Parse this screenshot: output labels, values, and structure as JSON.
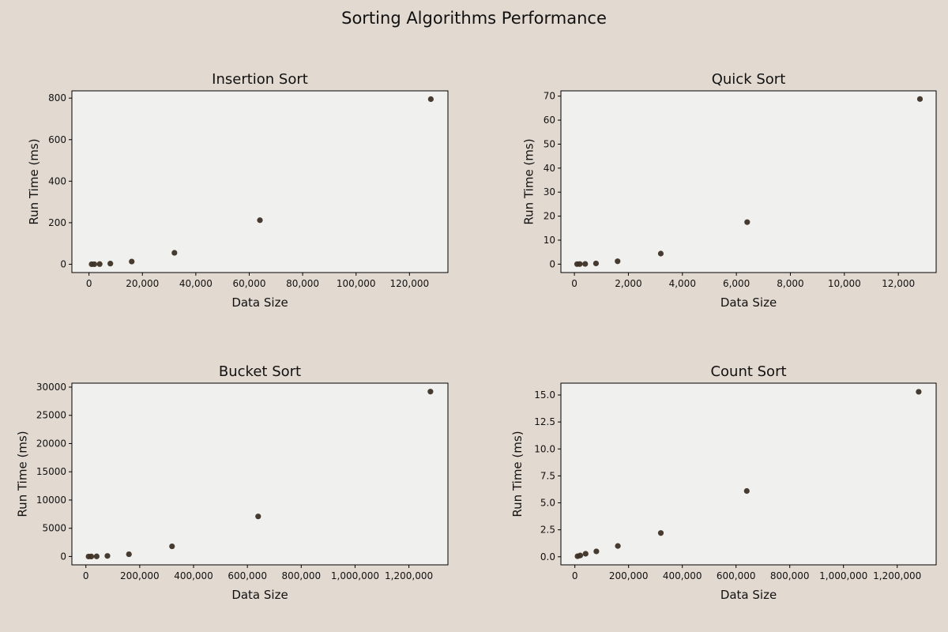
{
  "figure": {
    "title": "Sorting Algorithms Performance",
    "background": "#e2d9d0",
    "plot_background": "#f0f0ee",
    "marker_color": "#3d3025"
  },
  "chart_data": [
    {
      "type": "scatter",
      "title": "Insertion Sort",
      "xlabel": "Data Size",
      "ylabel": "Run Time (ms)",
      "x": [
        1000,
        2000,
        4000,
        8000,
        16000,
        32000,
        64000,
        128000
      ],
      "y": [
        0.05,
        0.2,
        0.8,
        3.2,
        13,
        55,
        212,
        795
      ],
      "xlim": [
        -6400,
        134400
      ],
      "ylim": [
        -40,
        835
      ],
      "xticks": [
        0,
        20000,
        40000,
        60000,
        80000,
        100000,
        120000
      ],
      "xtick_labels": [
        "0",
        "20,000",
        "40,000",
        "60,000",
        "80,000",
        "100,000",
        "120,000"
      ],
      "yticks": [
        0,
        200,
        400,
        600,
        800
      ],
      "ytick_labels": [
        "0",
        "200",
        "400",
        "600",
        "800"
      ],
      "grid": false
    },
    {
      "type": "scatter",
      "title": "Quick Sort",
      "xlabel": "Data Size",
      "ylabel": "Run Time (ms)",
      "x": [
        100,
        200,
        400,
        800,
        1600,
        3200,
        6400,
        12800
      ],
      "y": [
        0.02,
        0.05,
        0.1,
        0.3,
        1.2,
        4.4,
        17.5,
        68.8
      ],
      "xlim": [
        -500,
        13400
      ],
      "ylim": [
        -3.5,
        72.2
      ],
      "xticks": [
        0,
        2000,
        4000,
        6000,
        8000,
        10000,
        12000
      ],
      "xtick_labels": [
        "0",
        "2,000",
        "4,000",
        "6,000",
        "8,000",
        "10,000",
        "12,000"
      ],
      "yticks": [
        0,
        10,
        20,
        30,
        40,
        50,
        60,
        70
      ],
      "ytick_labels": [
        "0",
        "10",
        "20",
        "30",
        "40",
        "50",
        "60",
        "70"
      ],
      "grid": false
    },
    {
      "type": "scatter",
      "title": "Bucket Sort",
      "xlabel": "Data Size",
      "ylabel": "Run Time (ms)",
      "x": [
        10000,
        20000,
        40000,
        80000,
        160000,
        320000,
        640000,
        1280000
      ],
      "y": [
        1,
        4,
        20,
        100,
        400,
        1800,
        7100,
        29200
      ],
      "xlim": [
        -52000,
        1345000
      ],
      "ylim": [
        -1480,
        30700
      ],
      "xticks": [
        0,
        200000,
        400000,
        600000,
        800000,
        1000000,
        1200000
      ],
      "xtick_labels": [
        "0",
        "200,000",
        "400,000",
        "600,000",
        "800,000",
        "1,000,000",
        "1,200,000"
      ],
      "yticks": [
        0,
        5000,
        10000,
        15000,
        20000,
        25000,
        30000
      ],
      "ytick_labels": [
        "0",
        "5000",
        "10000",
        "15000",
        "20000",
        "25000",
        "30000"
      ],
      "grid": false
    },
    {
      "type": "scatter",
      "title": "Count Sort",
      "xlabel": "Data Size",
      "ylabel": "Run Time (ms)",
      "x": [
        10000,
        20000,
        40000,
        80000,
        160000,
        320000,
        640000,
        1280000
      ],
      "y": [
        0.05,
        0.12,
        0.28,
        0.5,
        1.0,
        2.2,
        6.1,
        15.3
      ],
      "xlim": [
        -52000,
        1345000
      ],
      "ylim": [
        -0.75,
        16.1
      ],
      "xticks": [
        0,
        200000,
        400000,
        600000,
        800000,
        1000000,
        1200000
      ],
      "xtick_labels": [
        "0",
        "200,000",
        "400,000",
        "600,000",
        "800,000",
        "1,000,000",
        "1,200,000"
      ],
      "yticks": [
        0,
        2.5,
        5,
        7.5,
        10,
        12.5,
        15
      ],
      "ytick_labels": [
        "0.0",
        "2.5",
        "5.0",
        "7.5",
        "10.0",
        "12.5",
        "15.0"
      ],
      "grid": false
    }
  ]
}
